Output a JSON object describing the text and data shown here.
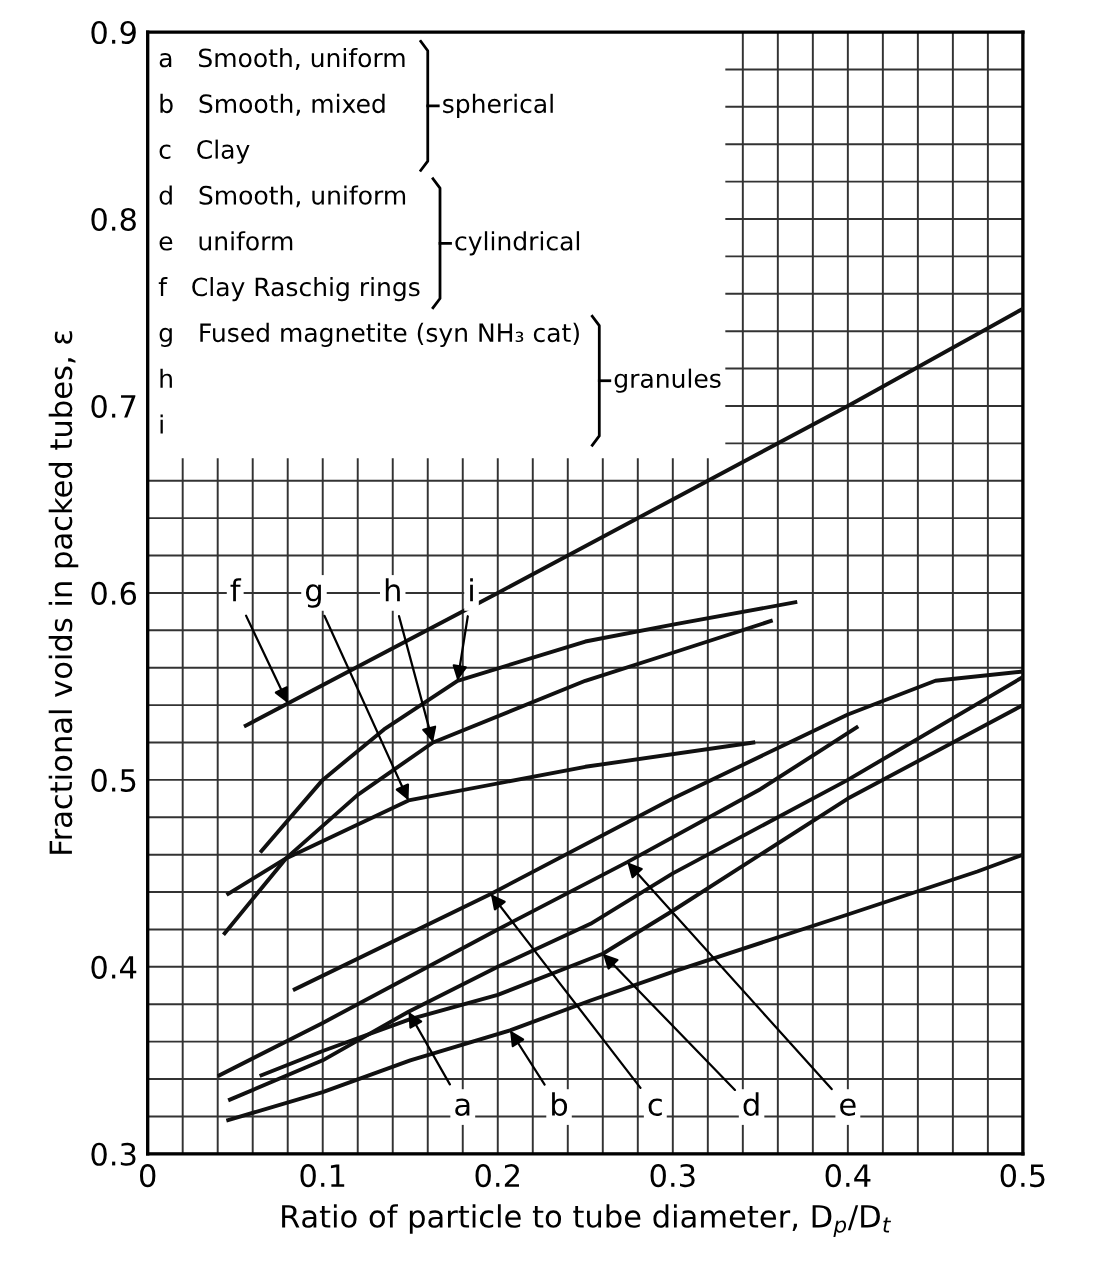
{
  "chart_data": {
    "type": "line",
    "xlabel": "Ratio of particle to tube diameter, D$_{p}$/D$_{t}$",
    "ylabel": "Fractional voids in packed tubes, ε",
    "xlim": [
      0,
      0.5
    ],
    "ylim": [
      0.3,
      0.9
    ],
    "xticks": [
      0,
      {
        "value": 0.02,
        "label": null
      },
      {
        "value": 0.04,
        "label": null
      },
      {
        "value": 0.06,
        "label": null
      },
      {
        "value": 0.08,
        "label": null
      },
      0.1,
      {
        "value": 0.12,
        "label": null
      },
      {
        "value": 0.14,
        "label": null
      },
      {
        "value": 0.16,
        "label": null
      },
      {
        "value": 0.18,
        "label": null
      },
      0.2,
      {
        "value": 0.22,
        "label": null
      },
      {
        "value": 0.24,
        "label": null
      },
      {
        "value": 0.26,
        "label": null
      },
      {
        "value": 0.28,
        "label": null
      },
      0.3,
      {
        "value": 0.32,
        "label": null
      },
      {
        "value": 0.34,
        "label": null
      },
      {
        "value": 0.36,
        "label": null
      },
      {
        "value": 0.38,
        "label": null
      },
      0.4,
      {
        "value": 0.42,
        "label": null
      },
      {
        "value": 0.44,
        "label": null
      },
      {
        "value": 0.46,
        "label": null
      },
      {
        "value": 0.48,
        "label": null
      },
      0.5
    ],
    "yticks": [
      0.3,
      {
        "value": 0.32,
        "label": null
      },
      {
        "value": 0.34,
        "label": null
      },
      {
        "value": 0.36,
        "label": null
      },
      {
        "value": 0.38,
        "label": null
      },
      0.4,
      {
        "value": 0.42,
        "label": null
      },
      {
        "value": 0.44,
        "label": null
      },
      {
        "value": 0.46,
        "label": null
      },
      {
        "value": 0.48,
        "label": null
      },
      0.5,
      {
        "value": 0.52,
        "label": null
      },
      {
        "value": 0.54,
        "label": null
      },
      {
        "value": 0.56,
        "label": null
      },
      {
        "value": 0.58,
        "label": null
      },
      0.6,
      {
        "value": 0.62,
        "label": null
      },
      {
        "value": 0.64,
        "label": null
      },
      {
        "value": 0.66,
        "label": null
      },
      {
        "value": 0.68,
        "label": null
      },
      0.7,
      {
        "value": 0.72,
        "label": null
      },
      {
        "value": 0.74,
        "label": null
      },
      {
        "value": 0.76,
        "label": null
      },
      {
        "value": 0.78,
        "label": null
      },
      0.8,
      {
        "value": 0.82,
        "label": null
      },
      {
        "value": 0.84,
        "label": null
      },
      {
        "value": 0.86,
        "label": null
      },
      {
        "value": 0.88,
        "label": null
      },
      0.9
    ],
    "grid": true,
    "marker": "none",
    "line_style": "solid",
    "series": [
      {
        "color": "#111111",
        "x": [
          0.047,
          0.1,
          0.149,
          0.2,
          0.253,
          0.3,
          0.4,
          0.5
        ],
        "values": [
          0.329,
          0.35,
          0.376,
          0.4,
          0.423,
          0.45,
          0.5,
          0.555
        ]
      },
      {
        "color": "#111111",
        "x": [
          0.046,
          0.1,
          0.15,
          0.207,
          0.253,
          0.302,
          0.4,
          0.474,
          0.5
        ],
        "values": [
          0.318,
          0.333,
          0.35,
          0.366,
          0.382,
          0.398,
          0.428,
          0.451,
          0.46
        ]
      },
      {
        "color": "#111111",
        "x": [
          0.084,
          0.196,
          0.3,
          0.4,
          0.45,
          0.5
        ],
        "values": [
          0.388,
          0.439,
          0.49,
          0.535,
          0.553,
          0.558
        ]
      },
      {
        "color": "#111111",
        "x": [
          0.065,
          0.1,
          0.15,
          0.2,
          0.26,
          0.3,
          0.4,
          0.5
        ],
        "values": [
          0.342,
          0.355,
          0.372,
          0.385,
          0.407,
          0.43,
          0.49,
          0.54
        ]
      },
      {
        "color": "#111111",
        "x": [
          0.041,
          0.1,
          0.2,
          0.274,
          0.35,
          0.405
        ],
        "values": [
          0.342,
          0.37,
          0.42,
          0.456,
          0.495,
          0.528
        ]
      },
      {
        "color": "#111111",
        "x": [
          0.056,
          0.2,
          0.3,
          0.4,
          0.5
        ],
        "values": [
          0.529,
          0.6,
          0.65,
          0.7,
          0.752
        ]
      },
      {
        "color": "#111111",
        "x": [
          0.046,
          0.079,
          0.149,
          0.25,
          0.346
        ],
        "values": [
          0.439,
          0.458,
          0.489,
          0.507,
          0.52
        ]
      },
      {
        "color": "#111111",
        "x": [
          0.044,
          0.079,
          0.12,
          0.163,
          0.25,
          0.3,
          0.356
        ],
        "values": [
          0.418,
          0.458,
          0.492,
          0.52,
          0.553,
          0.568,
          0.585
        ]
      },
      {
        "color": "#111111",
        "x": [
          0.065,
          0.1,
          0.135,
          0.177,
          0.25,
          0.3,
          0.37
        ],
        "values": [
          0.462,
          0.5,
          0.527,
          0.553,
          0.574,
          0.583,
          0.595
        ]
      }
    ],
    "annotations": [
      {
        "text": "a",
        "x": 0.149,
        "y": 0.376
      },
      {
        "text": "b",
        "x": 0.207,
        "y": 0.366
      },
      {
        "text": "c",
        "x": 0.196,
        "y": 0.439
      },
      {
        "text": "d",
        "x": 0.26,
        "y": 0.407
      },
      {
        "text": "e",
        "x": 0.274,
        "y": 0.456
      },
      {
        "text": "f",
        "x": 0.08,
        "y": 0.541
      },
      {
        "text": "g",
        "x": 0.149,
        "y": 0.489
      },
      {
        "text": "h",
        "x": 0.163,
        "y": 0.52
      },
      {
        "text": "i",
        "x": 0.177,
        "y": 0.553
      },
      "a   Smooth, uniform",
      "b   Smooth, mixed",
      "c   Clay",
      "d   Smooth, uniform",
      "e   uniform",
      "f   Clay Raschig rings",
      "g   Fused magnetite (syn NH₃ cat)",
      "h",
      "i",
      "spherical",
      "cylindrical",
      "granules"
    ]
  }
}
